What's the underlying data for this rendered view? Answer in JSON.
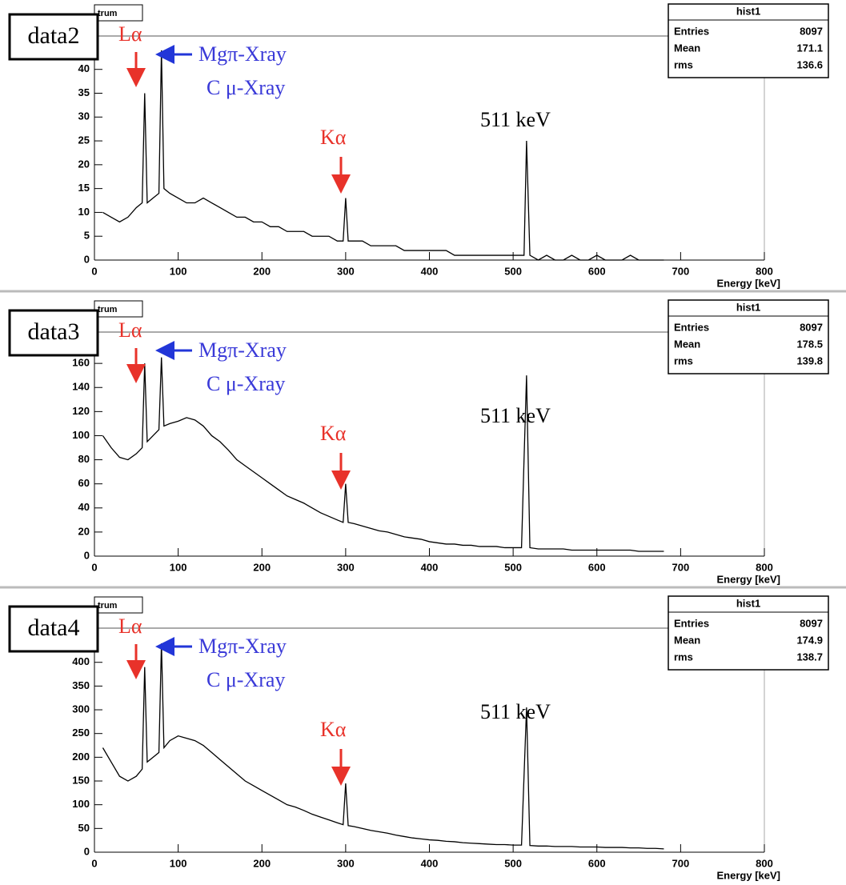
{
  "chart_data": [
    {
      "type": "line",
      "title": "trum",
      "panel_label": "data2",
      "annotations": [
        "Lα",
        "Mgπ-Xray",
        "C μ-Xray",
        "Kα",
        "511 keV"
      ],
      "stats": {
        "title": "hist1",
        "rows": [
          {
            "label": "Entries",
            "value": 8097
          },
          {
            "label": "Mean",
            "value": 171.1
          },
          {
            "label": "rms",
            "value": 136.6
          }
        ]
      },
      "xlabel": "Energy [keV]",
      "xlim": [
        0,
        800
      ],
      "xticks": [
        0,
        100,
        200,
        300,
        400,
        500,
        600,
        700,
        800
      ],
      "ylim": [
        0,
        47
      ],
      "yticks": [
        0,
        5,
        10,
        15,
        20,
        25,
        30,
        35,
        40
      ],
      "color": "#000000",
      "x": [
        10,
        20,
        30,
        40,
        50,
        57,
        60,
        63,
        70,
        77,
        80,
        83,
        90,
        100,
        110,
        120,
        130,
        140,
        150,
        160,
        170,
        180,
        190,
        200,
        210,
        220,
        230,
        240,
        250,
        260,
        270,
        280,
        290,
        297,
        300,
        303,
        310,
        320,
        330,
        340,
        350,
        360,
        370,
        380,
        390,
        400,
        410,
        420,
        430,
        440,
        450,
        460,
        470,
        480,
        490,
        500,
        510,
        513,
        516,
        520,
        530,
        540,
        550,
        560,
        570,
        580,
        590,
        600,
        610,
        620,
        630,
        640,
        650,
        660,
        670,
        680
      ],
      "values": [
        10,
        9,
        8,
        9,
        11,
        12,
        35,
        12,
        13,
        14,
        44,
        15,
        14,
        13,
        12,
        12,
        13,
        12,
        11,
        10,
        9,
        9,
        8,
        8,
        7,
        7,
        6,
        6,
        6,
        5,
        5,
        5,
        4,
        4,
        13,
        4,
        4,
        4,
        3,
        3,
        3,
        3,
        2,
        2,
        2,
        2,
        2,
        2,
        1,
        1,
        1,
        1,
        1,
        1,
        1,
        1,
        1,
        1,
        25,
        1,
        0,
        1,
        0,
        0,
        1,
        0,
        0,
        1,
        0,
        0,
        0,
        1,
        0,
        0,
        0,
        0
      ]
    },
    {
      "type": "line",
      "title": "trum",
      "panel_label": "data3",
      "annotations": [
        "Lα",
        "Mgπ-Xray",
        "C μ-Xray",
        "Kα",
        "511 keV"
      ],
      "stats": {
        "title": "hist1",
        "rows": [
          {
            "label": "Entries",
            "value": 8097
          },
          {
            "label": "Mean",
            "value": 178.5
          },
          {
            "label": "rms",
            "value": 139.8
          }
        ]
      },
      "xlabel": "Energy [keV]",
      "xlim": [
        0,
        800
      ],
      "xticks": [
        0,
        100,
        200,
        300,
        400,
        500,
        600,
        700,
        800
      ],
      "ylim": [
        0,
        186
      ],
      "yticks": [
        0,
        20,
        40,
        60,
        80,
        100,
        120,
        140,
        160
      ],
      "color": "#000000",
      "x": [
        10,
        20,
        30,
        40,
        50,
        57,
        60,
        63,
        70,
        77,
        80,
        83,
        90,
        100,
        110,
        120,
        130,
        140,
        150,
        160,
        170,
        180,
        190,
        200,
        210,
        220,
        230,
        240,
        250,
        260,
        270,
        280,
        290,
        297,
        300,
        303,
        310,
        320,
        330,
        340,
        350,
        360,
        370,
        380,
        390,
        400,
        410,
        420,
        430,
        440,
        450,
        460,
        470,
        480,
        490,
        500,
        510,
        513,
        516,
        520,
        530,
        540,
        550,
        560,
        570,
        580,
        590,
        600,
        610,
        620,
        630,
        640,
        650,
        660,
        670,
        680
      ],
      "values": [
        100,
        90,
        82,
        80,
        85,
        90,
        160,
        95,
        100,
        105,
        165,
        108,
        110,
        112,
        115,
        113,
        108,
        100,
        95,
        88,
        80,
        75,
        70,
        65,
        60,
        55,
        50,
        47,
        44,
        40,
        36,
        33,
        30,
        28,
        60,
        28,
        27,
        25,
        23,
        21,
        20,
        18,
        16,
        15,
        14,
        12,
        11,
        10,
        10,
        9,
        9,
        8,
        8,
        8,
        7,
        7,
        7,
        80,
        150,
        7,
        6,
        6,
        6,
        6,
        5,
        5,
        5,
        5,
        5,
        5,
        5,
        5,
        4,
        4,
        4,
        4
      ]
    },
    {
      "type": "line",
      "title": "trum",
      "panel_label": "data4",
      "annotations": [
        "Lα",
        "Mgπ-Xray",
        "C μ-Xray",
        "Kα",
        "511 keV"
      ],
      "stats": {
        "title": "hist1",
        "rows": [
          {
            "label": "Entries",
            "value": 8097
          },
          {
            "label": "Mean",
            "value": 174.9
          },
          {
            "label": "rms",
            "value": 138.7
          }
        ]
      },
      "xlabel": "Energy [keV]",
      "xlim": [
        0,
        800
      ],
      "xticks": [
        0,
        100,
        200,
        300,
        400,
        500,
        600,
        700,
        800
      ],
      "ylim": [
        0,
        472
      ],
      "yticks": [
        0,
        50,
        100,
        150,
        200,
        250,
        300,
        350,
        400
      ],
      "color": "#000000",
      "x": [
        10,
        20,
        30,
        40,
        50,
        57,
        60,
        63,
        70,
        77,
        80,
        83,
        90,
        100,
        110,
        120,
        130,
        140,
        150,
        160,
        170,
        180,
        190,
        200,
        210,
        220,
        230,
        240,
        250,
        260,
        270,
        280,
        290,
        297,
        300,
        303,
        310,
        320,
        330,
        340,
        350,
        360,
        370,
        380,
        390,
        400,
        410,
        420,
        430,
        440,
        450,
        460,
        470,
        480,
        490,
        500,
        510,
        513,
        516,
        520,
        530,
        540,
        550,
        560,
        570,
        580,
        590,
        600,
        610,
        620,
        630,
        640,
        650,
        660,
        670,
        680
      ],
      "values": [
        220,
        190,
        160,
        150,
        160,
        175,
        390,
        190,
        200,
        210,
        440,
        220,
        235,
        245,
        240,
        235,
        225,
        210,
        195,
        180,
        165,
        150,
        140,
        130,
        120,
        110,
        100,
        95,
        88,
        80,
        74,
        68,
        62,
        58,
        145,
        56,
        54,
        50,
        46,
        43,
        40,
        36,
        33,
        30,
        28,
        26,
        25,
        23,
        22,
        20,
        19,
        18,
        17,
        16,
        16,
        15,
        15,
        160,
        305,
        14,
        13,
        13,
        12,
        12,
        12,
        11,
        11,
        11,
        10,
        10,
        10,
        9,
        9,
        8,
        8,
        7
      ]
    }
  ]
}
